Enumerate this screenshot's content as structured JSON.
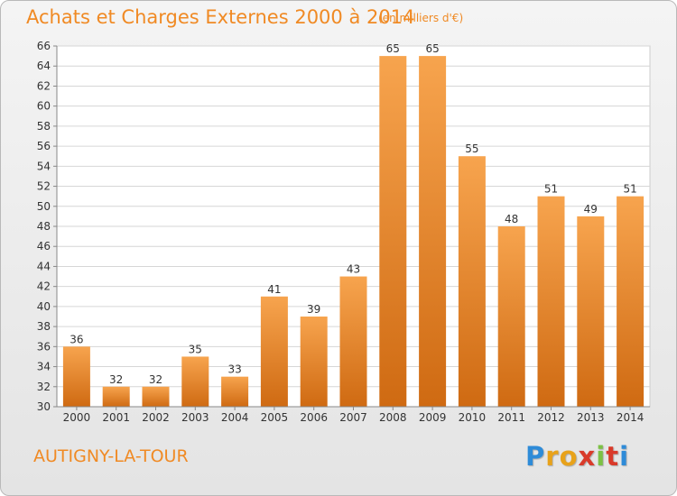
{
  "header": {
    "title": "Achats et Charges Externes 2000 à 2014",
    "subtitle": "(en milliers d'€)"
  },
  "footer": {
    "place": "AUTIGNY-LA-TOUR",
    "logo": [
      "P",
      "r",
      "o",
      "x",
      "i",
      "t",
      "i"
    ],
    "logo_colors": [
      "#2e8bd8",
      "#e8a21a",
      "#e8a21a",
      "#d93a2a",
      "#7cc144",
      "#d93a2a",
      "#2e8bd8"
    ]
  },
  "colors": {
    "bar_top": "#f7a44e",
    "bar_bottom": "#cf6a12",
    "text": "#f08a24",
    "axis_text": "#333333",
    "grid": "#d6d6d6"
  },
  "chart_data": {
    "type": "bar",
    "title": "Achats et Charges Externes 2000 à 2014",
    "subtitle": "(en milliers d'€)",
    "categories": [
      "2000",
      "2001",
      "2002",
      "2003",
      "2004",
      "2005",
      "2006",
      "2007",
      "2008",
      "2009",
      "2010",
      "2011",
      "2012",
      "2013",
      "2014"
    ],
    "values": [
      36,
      32,
      32,
      35,
      33,
      41,
      39,
      43,
      65,
      65,
      55,
      48,
      51,
      49,
      51
    ],
    "ylim": [
      30,
      66
    ],
    "yticks": [
      30,
      32,
      34,
      36,
      38,
      40,
      42,
      44,
      46,
      48,
      50,
      52,
      54,
      56,
      58,
      60,
      62,
      64,
      66
    ],
    "grid": true,
    "data_labels": true
  }
}
